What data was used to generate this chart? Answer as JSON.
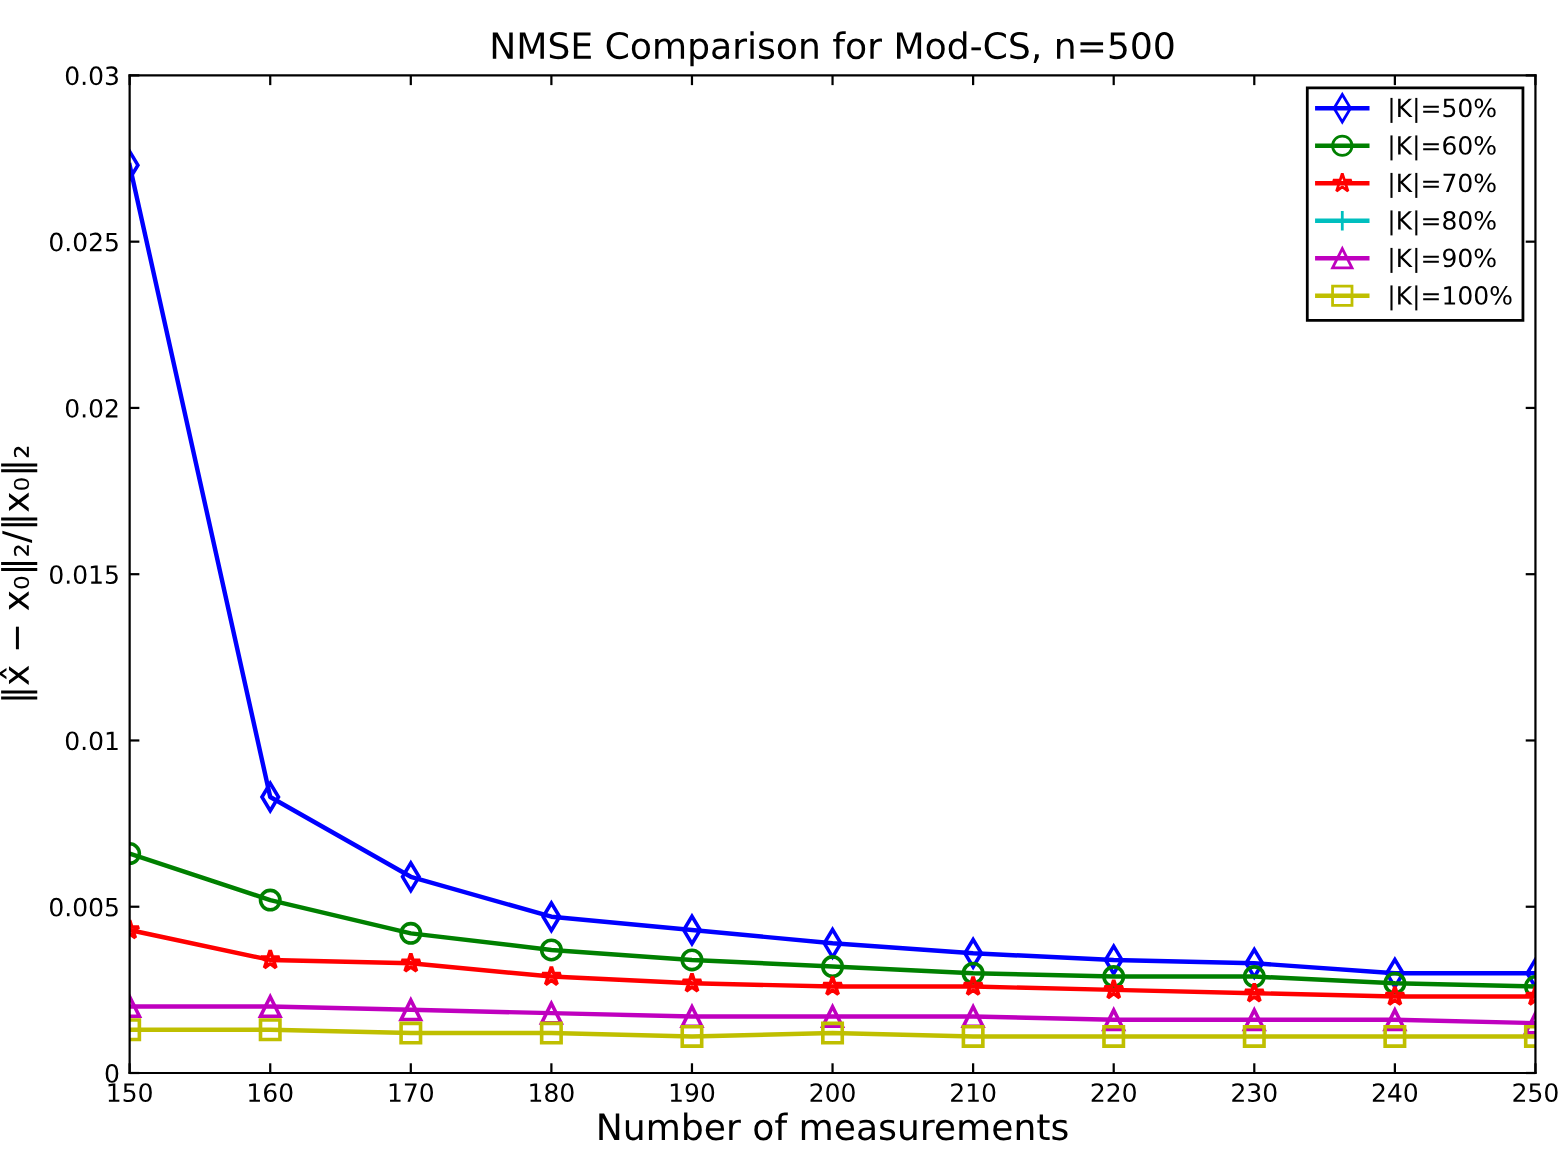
{
  "chart_data": {
    "type": "line",
    "title": "NMSE Comparison for Mod-CS, n=500",
    "xlabel": "Number of measurements",
    "ylabel": "‖x̂ − x₀‖₂/‖x₀‖₂",
    "x": [
      150,
      160,
      170,
      180,
      190,
      200,
      210,
      220,
      230,
      240,
      250
    ],
    "series": [
      {
        "name": "|K|=50%",
        "color": "#0000ff",
        "marker": "diamond",
        "values": [
          0.0273,
          0.0083,
          0.0059,
          0.0047,
          0.0043,
          0.0039,
          0.0036,
          0.0034,
          0.0033,
          0.003,
          0.003
        ]
      },
      {
        "name": "|K|=60%",
        "color": "#008000",
        "marker": "circle",
        "values": [
          0.0066,
          0.0052,
          0.0042,
          0.0037,
          0.0034,
          0.0032,
          0.003,
          0.0029,
          0.0029,
          0.0027,
          0.0026
        ]
      },
      {
        "name": "|K|=70%",
        "color": "#ff0000",
        "marker": "star",
        "values": [
          0.0043,
          0.0034,
          0.0033,
          0.0029,
          0.0027,
          0.0026,
          0.0026,
          0.0025,
          0.0024,
          0.0023,
          0.0023
        ]
      },
      {
        "name": "|K|=80%",
        "color": "#00bfbf",
        "marker": "cross",
        "values": [
          null,
          null,
          null,
          null,
          null,
          null,
          null,
          null,
          null,
          null,
          null
        ]
      },
      {
        "name": "|K|=90%",
        "color": "#bf00bf",
        "marker": "triangle",
        "values": [
          0.002,
          0.002,
          0.0019,
          0.0018,
          0.0017,
          0.0017,
          0.0017,
          0.0016,
          0.0016,
          0.0016,
          0.0015
        ]
      },
      {
        "name": "|K|=100%",
        "color": "#bfbf00",
        "marker": "square",
        "values": [
          0.0013,
          0.0013,
          0.0012,
          0.0012,
          0.0011,
          0.0012,
          0.0011,
          0.0011,
          0.0011,
          0.0011,
          0.0011
        ]
      }
    ],
    "xlim": [
      150,
      250
    ],
    "xticks": [
      150,
      160,
      170,
      180,
      190,
      200,
      210,
      220,
      230,
      240,
      250
    ],
    "ylim": [
      0,
      0.03
    ],
    "yticks": [
      0,
      0.005,
      0.01,
      0.015,
      0.02,
      0.025,
      0.03
    ],
    "grid": false,
    "legend": "top right",
    "line_style": "solid"
  }
}
